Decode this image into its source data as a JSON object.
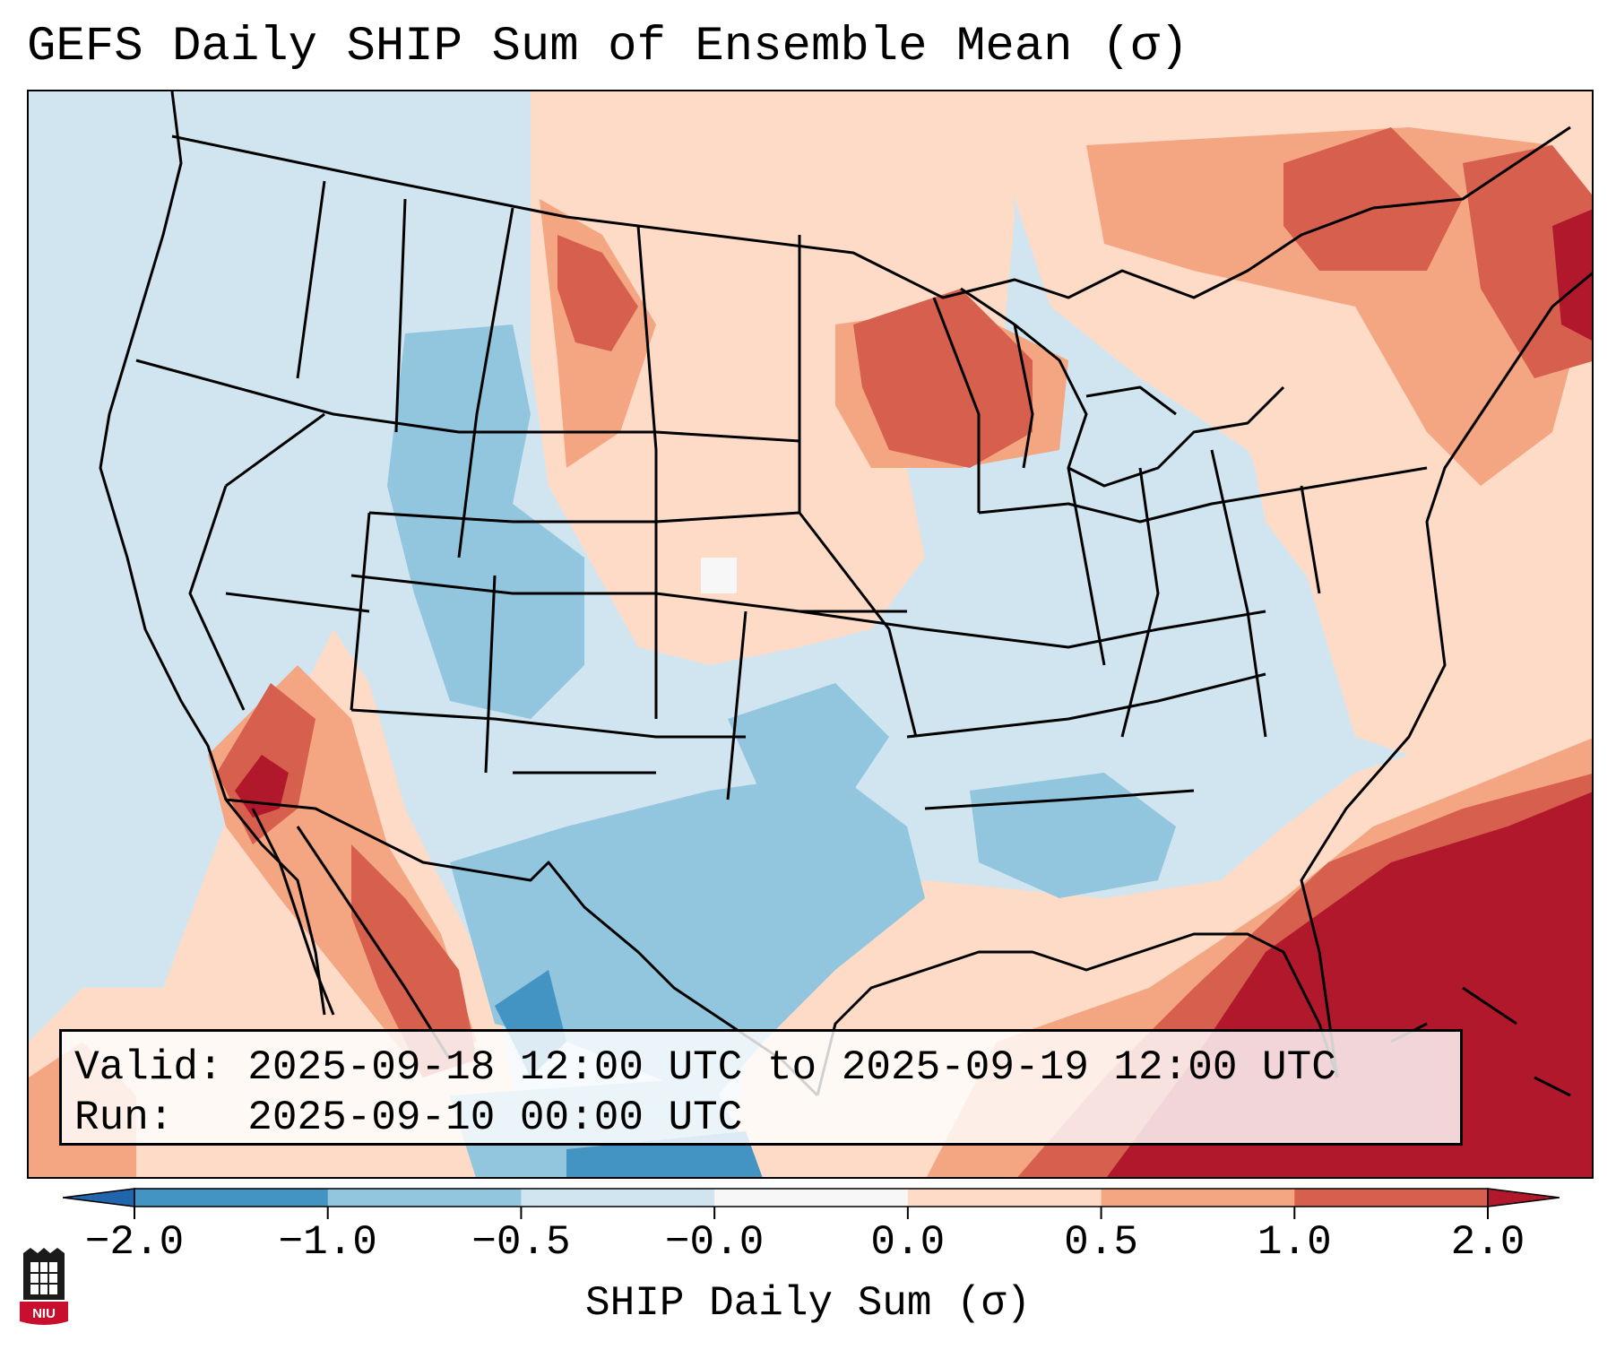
{
  "figure": {
    "title": "GEFS Daily SHIP Sum of Ensemble Mean (σ)",
    "valid_label": "Valid:",
    "valid_value": "2025-09-18 12:00 UTC to 2025-09-19 12:00 UTC",
    "run_label": "Run:",
    "run_value": "2025-09-10 00:00 UTC",
    "colorbar_label": "SHIP Daily Sum (σ)",
    "logo_text": "NIU"
  },
  "colorbar": {
    "ticks": [
      "−2.0",
      "−1.0",
      "−0.5",
      "−0.0",
      "0.0",
      "0.5",
      "1.0",
      "2.0"
    ],
    "bins": [
      {
        "color": "#4393c3"
      },
      {
        "color": "#92c5de"
      },
      {
        "color": "#d1e5f0"
      },
      {
        "color": "#f7f7f7"
      },
      {
        "color": "#fddbc7"
      },
      {
        "color": "#f4a582"
      },
      {
        "color": "#d6604d"
      }
    ],
    "under_color": "#2166ac",
    "over_color": "#b2182b"
  },
  "colors": {
    "strong_negative": "#4393c3",
    "negative": "#92c5de",
    "slight_negative": "#d1e5f0",
    "slight_positive": "#fddbc7",
    "positive": "#f4a582",
    "strong_positive": "#d6604d",
    "extreme_positive": "#b2182b"
  }
}
